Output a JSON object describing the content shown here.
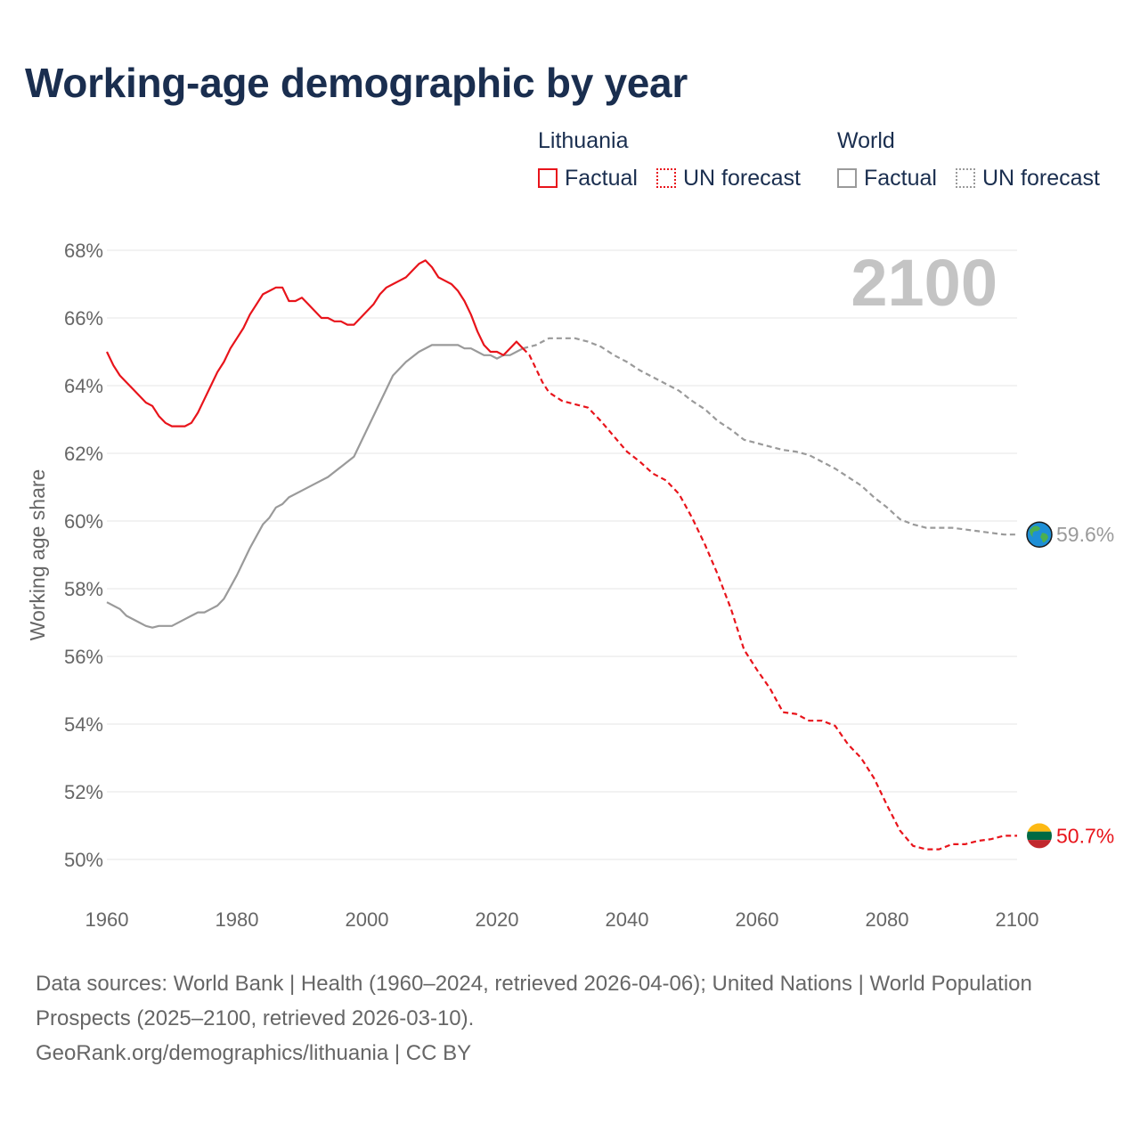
{
  "title": "Working-age demographic by year",
  "legend": {
    "lithuania": {
      "title": "Lithuania",
      "factual": "Factual",
      "forecast": "UN forecast"
    },
    "world": {
      "title": "World",
      "factual": "Factual",
      "forecast": "UN forecast"
    }
  },
  "colors": {
    "lithuania": "#e8141b",
    "world": "#9a9a9a",
    "grid": "#e6e6e6",
    "title": "#1a2e4f"
  },
  "source": {
    "line1": "Data sources: World Bank | Health (1960–2024, retrieved 2026-04-06); United Nations | World Population Prospects (2025–2100, retrieved 2026-03-10).",
    "line2": "GeoRank.org/demographics/lithuania | CC BY"
  },
  "chart_data": {
    "type": "line",
    "year_label": "2100",
    "ylabel": "Working age share",
    "xlim": [
      1960,
      2100
    ],
    "ylim": [
      49,
      68.5
    ],
    "x_ticks": [
      "1960",
      "1980",
      "2000",
      "2020",
      "2040",
      "2060",
      "2080",
      "2100"
    ],
    "y_ticks": [
      "50%",
      "52%",
      "54%",
      "56%",
      "58%",
      "60%",
      "62%",
      "64%",
      "66%",
      "68%"
    ],
    "end_labels": {
      "lithuania": "50.7%",
      "world": "59.6%"
    },
    "series": [
      {
        "name": "Lithuania",
        "kind": "factual",
        "x": [
          1960,
          1961,
          1962,
          1963,
          1964,
          1965,
          1966,
          1967,
          1968,
          1969,
          1970,
          1971,
          1972,
          1973,
          1974,
          1975,
          1976,
          1977,
          1978,
          1979,
          1980,
          1981,
          1982,
          1983,
          1984,
          1985,
          1986,
          1987,
          1988,
          1989,
          1990,
          1991,
          1992,
          1993,
          1994,
          1995,
          1996,
          1997,
          1998,
          1999,
          2000,
          2001,
          2002,
          2003,
          2004,
          2005,
          2006,
          2007,
          2008,
          2009,
          2010,
          2011,
          2012,
          2013,
          2014,
          2015,
          2016,
          2017,
          2018,
          2019,
          2020,
          2021,
          2022,
          2023,
          2024
        ],
        "values": [
          65.0,
          64.6,
          64.3,
          64.1,
          63.9,
          63.7,
          63.5,
          63.4,
          63.1,
          62.9,
          62.8,
          62.8,
          62.8,
          62.9,
          63.2,
          63.6,
          64.0,
          64.4,
          64.7,
          65.1,
          65.4,
          65.7,
          66.1,
          66.4,
          66.7,
          66.8,
          66.9,
          66.9,
          66.5,
          66.5,
          66.6,
          66.4,
          66.2,
          66.0,
          66.0,
          65.9,
          65.9,
          65.8,
          65.8,
          66.0,
          66.2,
          66.4,
          66.7,
          66.9,
          67.0,
          67.1,
          67.2,
          67.4,
          67.6,
          67.7,
          67.5,
          67.2,
          67.1,
          67.0,
          66.8,
          66.5,
          66.1,
          65.6,
          65.2,
          65.0,
          65.0,
          64.9,
          65.1,
          65.3,
          65.1
        ]
      },
      {
        "name": "Lithuania",
        "kind": "UN forecast",
        "x": [
          2024,
          2025,
          2026,
          2027,
          2028,
          2030,
          2032,
          2034,
          2036,
          2038,
          2040,
          2042,
          2044,
          2046,
          2048,
          2050,
          2052,
          2054,
          2056,
          2058,
          2060,
          2062,
          2064,
          2066,
          2068,
          2070,
          2072,
          2074,
          2076,
          2078,
          2080,
          2082,
          2084,
          2086,
          2088,
          2090,
          2092,
          2094,
          2096,
          2098,
          2100
        ],
        "values": [
          65.1,
          64.9,
          64.5,
          64.1,
          63.8,
          63.55,
          63.45,
          63.35,
          62.95,
          62.5,
          62.05,
          61.75,
          61.4,
          61.2,
          60.8,
          60.1,
          59.3,
          58.4,
          57.4,
          56.2,
          55.6,
          55.05,
          54.35,
          54.3,
          54.1,
          54.1,
          53.95,
          53.4,
          53.0,
          52.4,
          51.6,
          50.85,
          50.4,
          50.3,
          50.3,
          50.45,
          50.45,
          50.55,
          50.6,
          50.7,
          50.7
        ]
      },
      {
        "name": "World",
        "kind": "factual",
        "x": [
          1960,
          1962,
          1963,
          1965,
          1966,
          1967,
          1968,
          1969,
          1970,
          1972,
          1973,
          1974,
          1975,
          1976,
          1977,
          1978,
          1980,
          1982,
          1984,
          1985,
          1986,
          1987,
          1988,
          1990,
          1992,
          1994,
          1996,
          1998,
          2000,
          2002,
          2004,
          2006,
          2008,
          2010,
          2012,
          2013,
          2014,
          2015,
          2016,
          2017,
          2018,
          2019,
          2020,
          2021,
          2022,
          2023,
          2024
        ],
        "values": [
          57.6,
          57.4,
          57.2,
          57.0,
          56.9,
          56.85,
          56.9,
          56.9,
          56.9,
          57.1,
          57.2,
          57.3,
          57.3,
          57.4,
          57.5,
          57.7,
          58.4,
          59.2,
          59.9,
          60.1,
          60.4,
          60.5,
          60.7,
          60.9,
          61.1,
          61.3,
          61.6,
          61.9,
          62.7,
          63.5,
          64.3,
          64.7,
          65.0,
          65.2,
          65.2,
          65.2,
          65.2,
          65.1,
          65.1,
          65.0,
          64.9,
          64.9,
          64.8,
          64.9,
          64.9,
          65.0,
          65.1
        ]
      },
      {
        "name": "World",
        "kind": "UN forecast",
        "x": [
          2024,
          2026,
          2028,
          2030,
          2032,
          2034,
          2036,
          2038,
          2040,
          2042,
          2044,
          2046,
          2048,
          2050,
          2052,
          2054,
          2056,
          2058,
          2060,
          2062,
          2064,
          2066,
          2068,
          2070,
          2072,
          2074,
          2076,
          2078,
          2080,
          2082,
          2084,
          2086,
          2088,
          2090,
          2092,
          2094,
          2096,
          2098,
          2100
        ],
        "values": [
          65.1,
          65.2,
          65.4,
          65.4,
          65.4,
          65.3,
          65.15,
          64.9,
          64.7,
          64.45,
          64.25,
          64.05,
          63.85,
          63.55,
          63.3,
          62.95,
          62.7,
          62.4,
          62.3,
          62.2,
          62.1,
          62.05,
          61.95,
          61.75,
          61.55,
          61.3,
          61.05,
          60.7,
          60.4,
          60.05,
          59.9,
          59.8,
          59.8,
          59.8,
          59.75,
          59.7,
          59.65,
          59.6,
          59.6
        ]
      }
    ]
  }
}
